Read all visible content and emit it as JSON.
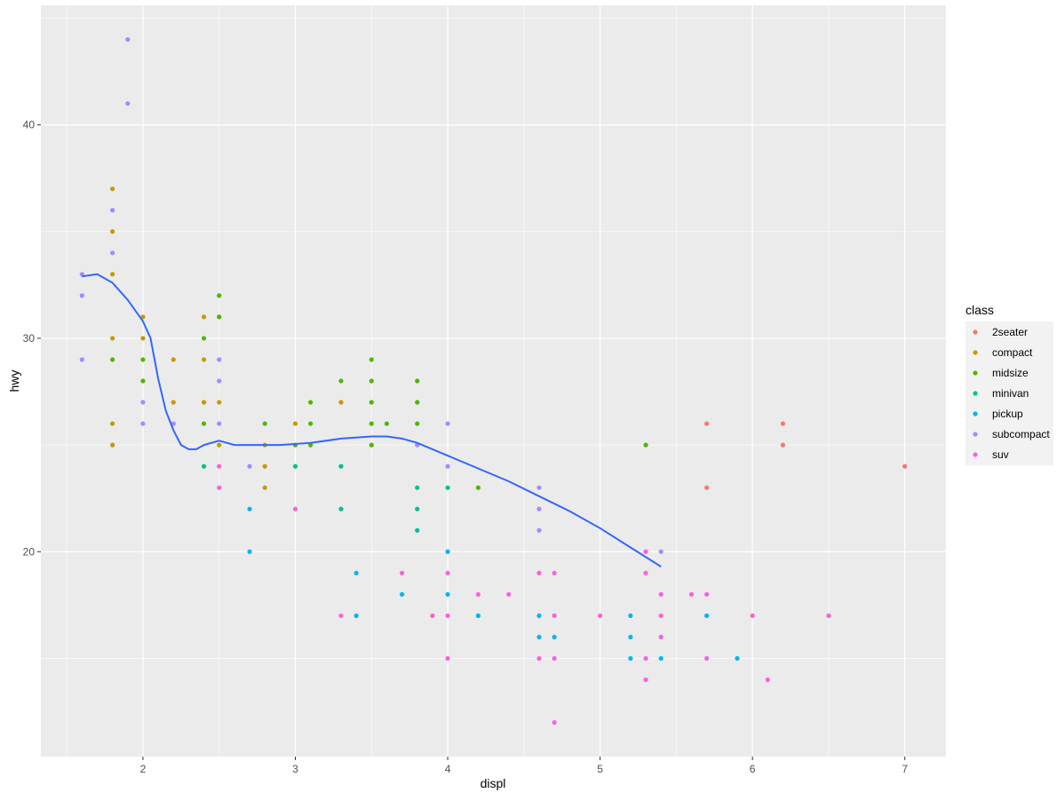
{
  "chart_data": {
    "type": "scatter",
    "title": "",
    "xlabel": "displ",
    "ylabel": "hwy",
    "xlim": [
      1.33,
      7.27
    ],
    "ylim": [
      10.4,
      45.6
    ],
    "x_ticks": [
      2,
      3,
      4,
      5,
      6,
      7
    ],
    "y_ticks": [
      20,
      30,
      40
    ],
    "grid": true,
    "legend": {
      "title": "class",
      "position": "right"
    },
    "series": [
      {
        "name": "2seater",
        "color": "#F8766D",
        "points": [
          [
            5.7,
            26
          ],
          [
            5.7,
            23
          ],
          [
            6.2,
            26
          ],
          [
            6.2,
            25
          ],
          [
            7.0,
            24
          ]
        ]
      },
      {
        "name": "compact",
        "color": "#C49A00",
        "points": [
          [
            1.8,
            37
          ],
          [
            1.8,
            35
          ],
          [
            1.8,
            33
          ],
          [
            1.8,
            30
          ],
          [
            1.8,
            26
          ],
          [
            1.8,
            25
          ],
          [
            2.0,
            31
          ],
          [
            2.0,
            30
          ],
          [
            2.2,
            29
          ],
          [
            2.2,
            27
          ],
          [
            2.4,
            31
          ],
          [
            2.4,
            29
          ],
          [
            2.4,
            27
          ],
          [
            2.5,
            27
          ],
          [
            2.5,
            25
          ],
          [
            2.8,
            25
          ],
          [
            2.8,
            24
          ],
          [
            2.8,
            23
          ],
          [
            3.0,
            26
          ],
          [
            3.3,
            27
          ]
        ]
      },
      {
        "name": "midsize",
        "color": "#53B400",
        "points": [
          [
            1.8,
            29
          ],
          [
            2.0,
            29
          ],
          [
            2.0,
            28
          ],
          [
            2.4,
            30
          ],
          [
            2.4,
            26
          ],
          [
            2.5,
            32
          ],
          [
            2.5,
            31
          ],
          [
            2.8,
            26
          ],
          [
            3.0,
            25
          ],
          [
            3.1,
            27
          ],
          [
            3.1,
            26
          ],
          [
            3.1,
            25
          ],
          [
            3.3,
            28
          ],
          [
            3.5,
            29
          ],
          [
            3.5,
            28
          ],
          [
            3.5,
            27
          ],
          [
            3.5,
            26
          ],
          [
            3.5,
            25
          ],
          [
            3.6,
            26
          ],
          [
            3.8,
            28
          ],
          [
            3.8,
            27
          ],
          [
            3.8,
            26
          ],
          [
            4.2,
            23
          ],
          [
            5.3,
            25
          ]
        ]
      },
      {
        "name": "minivan",
        "color": "#00C094",
        "points": [
          [
            2.4,
            24
          ],
          [
            3.0,
            24
          ],
          [
            3.3,
            24
          ],
          [
            3.3,
            22
          ],
          [
            3.8,
            23
          ],
          [
            3.8,
            22
          ],
          [
            3.8,
            21
          ],
          [
            4.0,
            23
          ]
        ]
      },
      {
        "name": "pickup",
        "color": "#00B6EB",
        "points": [
          [
            2.7,
            22
          ],
          [
            2.7,
            20
          ],
          [
            3.4,
            19
          ],
          [
            3.4,
            17
          ],
          [
            3.7,
            18
          ],
          [
            4.0,
            20
          ],
          [
            4.0,
            18
          ],
          [
            4.2,
            17
          ],
          [
            4.6,
            17
          ],
          [
            4.6,
            16
          ],
          [
            4.7,
            16
          ],
          [
            5.2,
            17
          ],
          [
            5.2,
            16
          ],
          [
            5.2,
            15
          ],
          [
            5.4,
            15
          ],
          [
            5.7,
            17
          ],
          [
            5.9,
            15
          ]
        ]
      },
      {
        "name": "subcompact",
        "color": "#A58AFF",
        "points": [
          [
            1.6,
            33
          ],
          [
            1.6,
            32
          ],
          [
            1.6,
            29
          ],
          [
            1.8,
            36
          ],
          [
            1.8,
            34
          ],
          [
            1.9,
            44
          ],
          [
            1.9,
            41
          ],
          [
            2.0,
            27
          ],
          [
            2.0,
            26
          ],
          [
            2.2,
            26
          ],
          [
            2.5,
            29
          ],
          [
            2.5,
            28
          ],
          [
            2.5,
            26
          ],
          [
            2.7,
            24
          ],
          [
            3.8,
            25
          ],
          [
            4.0,
            26
          ],
          [
            4.0,
            24
          ],
          [
            4.6,
            23
          ],
          [
            4.6,
            22
          ],
          [
            4.6,
            21
          ],
          [
            5.4,
            20
          ]
        ]
      },
      {
        "name": "suv",
        "color": "#FB61D7",
        "points": [
          [
            2.5,
            24
          ],
          [
            2.5,
            23
          ],
          [
            3.0,
            22
          ],
          [
            3.3,
            17
          ],
          [
            3.7,
            19
          ],
          [
            3.9,
            17
          ],
          [
            4.0,
            19
          ],
          [
            4.0,
            17
          ],
          [
            4.0,
            15
          ],
          [
            4.2,
            18
          ],
          [
            4.4,
            18
          ],
          [
            4.6,
            19
          ],
          [
            4.6,
            15
          ],
          [
            4.7,
            19
          ],
          [
            4.7,
            17
          ],
          [
            4.7,
            15
          ],
          [
            4.7,
            12
          ],
          [
            5.0,
            17
          ],
          [
            5.3,
            20
          ],
          [
            5.3,
            19
          ],
          [
            5.3,
            15
          ],
          [
            5.3,
            14
          ],
          [
            5.4,
            18
          ],
          [
            5.4,
            17
          ],
          [
            5.4,
            16
          ],
          [
            5.6,
            18
          ],
          [
            5.7,
            18
          ],
          [
            5.7,
            15
          ],
          [
            6.0,
            17
          ],
          [
            6.1,
            14
          ],
          [
            6.5,
            17
          ]
        ]
      }
    ],
    "smooth": {
      "color": "#3366FF",
      "points": [
        [
          1.6,
          32.9
        ],
        [
          1.7,
          33.0
        ],
        [
          1.8,
          32.6
        ],
        [
          1.9,
          31.8
        ],
        [
          2.0,
          30.8
        ],
        [
          2.05,
          30.0
        ],
        [
          2.1,
          28.1
        ],
        [
          2.15,
          26.6
        ],
        [
          2.2,
          25.7
        ],
        [
          2.25,
          25.0
        ],
        [
          2.3,
          24.8
        ],
        [
          2.35,
          24.8
        ],
        [
          2.4,
          25.0
        ],
        [
          2.5,
          25.2
        ],
        [
          2.6,
          25.0
        ],
        [
          2.7,
          25.0
        ],
        [
          2.9,
          25.0
        ],
        [
          3.1,
          25.1
        ],
        [
          3.3,
          25.3
        ],
        [
          3.5,
          25.4
        ],
        [
          3.6,
          25.4
        ],
        [
          3.7,
          25.3
        ],
        [
          3.8,
          25.1
        ],
        [
          4.0,
          24.5
        ],
        [
          4.2,
          23.9
        ],
        [
          4.4,
          23.3
        ],
        [
          4.6,
          22.6
        ],
        [
          4.8,
          21.9
        ],
        [
          5.0,
          21.1
        ],
        [
          5.2,
          20.2
        ],
        [
          5.4,
          19.3
        ]
      ]
    }
  }
}
